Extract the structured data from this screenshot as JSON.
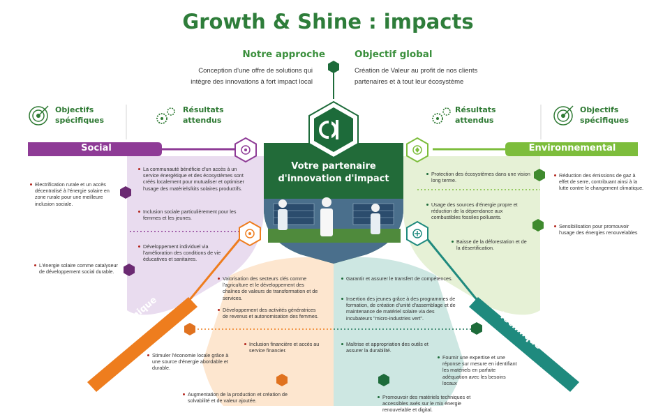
{
  "title": "Growth & Shine : impacts",
  "approach": {
    "heading": "Notre approche",
    "text1": "Conception d'une offre de solutions qui",
    "text2": "intègre des innovations à fort impact local"
  },
  "objective": {
    "heading": "Objectif global",
    "text1": "Création de Valeur au profit de nos clients",
    "text2": "partenaires et à tout leur écosystème"
  },
  "headers": {
    "specific_objectives_1": "Objectifs",
    "specific_objectives_2": "spécifiques",
    "expected_results_1": "Résultats",
    "expected_results_2": "attendus"
  },
  "bands": {
    "social": "Social",
    "environment": "Environnemental",
    "economic": "Economique",
    "technical": "Technique"
  },
  "center": {
    "logo_text": "G|S",
    "line1": "Votre partenaire",
    "line2": "d'innovation d'impact"
  },
  "social": {
    "results": [
      "La communauté bénéficie d'un accès à un service énergétique et des écosystèmes sont créés localement pour mutualiser et optimiser l'usage des matériels/kits solaires productifs.",
      "Inclusion sociale particulièrement pour les femmes et les jeunes.",
      "Développement individuel via l'amélioration des conditions de vie éducatives et sanitaires."
    ],
    "objectives": [
      "Electrification rurale et un accès décentralisé à l'énergie solaire en zone rurale pour une meilleure inclusion sociale.",
      "L'énergie solaire comme catalyseur de développement social durable."
    ]
  },
  "environment": {
    "results": [
      "Protection des écosystèmes dans une vision long terme.",
      "Usage des sources d'énergie propre et réduction de la dépendance aux combustibles fossiles polluants.",
      "Baisse de la déforestation et de la désertification."
    ],
    "objectives": [
      "Réduction des émissions de gaz à effet de serre, contribuant ainsi à la lutte contre le changement climatique.",
      "Sensibilisation pour promouvoir l'usage des énergies renouvelables"
    ]
  },
  "economic": {
    "results": [
      "Valorisation des secteurs clés comme l'agriculture et le développement des chaînes de valeurs de transformation et de services.",
      "Développement des activités génératrices de revenus et autonomisation des femmes.",
      "Inclusion financière et accès au service financier."
    ],
    "objectives": [
      "Stimuler l'économie locale grâce à une source d'énergie abordable et durable.",
      "Augmentation de la production et création de solvabilité et de valeur ajoutée."
    ]
  },
  "technical": {
    "results": [
      "Garantir et assurer le transfert de compétences.",
      "Insertion des jeunes grâce à des programmes de formation, de création d'unité d'assemblage et de maintenance de matériel solaire via des incubateurs \"micro-industries vert\".",
      "Maîtrise et appropriation des outils et assurer la durabilité."
    ],
    "objectives": [
      "Fournir une expertise et une réponse sur mesure en identifiant les matériels en parfaite adéquation avec les besoins locaux",
      "Promouvoir des matériels techniques et accessibles axés sur le mix énergie renouvelable et digital."
    ]
  },
  "colors": {
    "green_title": "#2e7d3a",
    "social": "#8e3b96",
    "social_bg": "#e9dcef",
    "environment": "#7dbd3c",
    "environment_bg": "#e6f1d6",
    "economic": "#ee7d1e",
    "economic_bg": "#fde6cf",
    "technical": "#1f8a7e",
    "technical_bg": "#cde7e2",
    "hex_dark_green": "#1d6b3a",
    "hex_purple": "#6b2a72",
    "hex_orange": "#e0721f"
  },
  "icons": {
    "target": "target-icon",
    "gears": "gears-icon",
    "logo": "logo-icon"
  }
}
